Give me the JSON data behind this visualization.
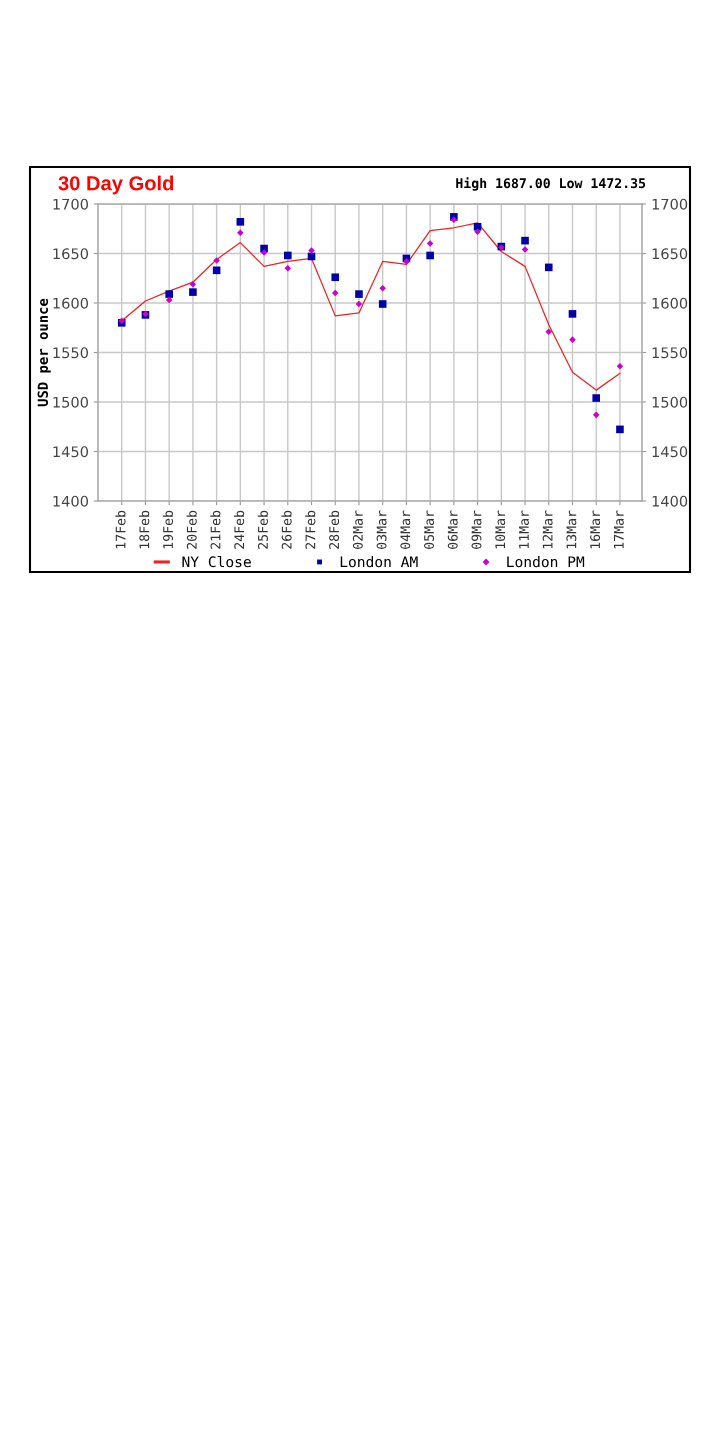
{
  "chart_data": {
    "type": "line",
    "title": "30 Day Gold",
    "subtitle": "High 1687.00 Low 1472.35",
    "ylabel": "USD per ounce",
    "categories": [
      "17Feb",
      "18Feb",
      "19Feb",
      "20Feb",
      "21Feb",
      "24Feb",
      "25Feb",
      "26Feb",
      "27Feb",
      "28Feb",
      "02Mar",
      "03Mar",
      "04Mar",
      "05Mar",
      "06Mar",
      "09Mar",
      "10Mar",
      "11Mar",
      "12Mar",
      "13Mar",
      "16Mar",
      "17Mar"
    ],
    "series": [
      {
        "name": "NY Close",
        "color": "#ee2222",
        "marker": "none",
        "line_style": "solid",
        "values": [
          1582,
          1602,
          1612,
          1621,
          1644,
          1661,
          1637,
          1642,
          1645,
          1587,
          1590,
          1642,
          1639,
          1673,
          1676,
          1681,
          1652,
          1637,
          1578,
          1530,
          1512,
          1529
        ]
      },
      {
        "name": "London AM",
        "type": "scatter",
        "color": "#0000aa",
        "marker": "square",
        "values": [
          1580,
          1588,
          1609,
          1611,
          1633,
          1682,
          1655,
          1648,
          1647,
          1626,
          1609,
          1599,
          1645,
          1648,
          1687,
          1677,
          1657,
          1663,
          1636,
          1589,
          1504,
          1472.35
        ]
      },
      {
        "name": "London PM",
        "type": "scatter",
        "color": "#cc00cc",
        "marker": "diamond",
        "values": [
          1582,
          1589,
          1603,
          1619,
          1643,
          1671,
          1651,
          1635,
          1653,
          1610,
          1599,
          1615,
          1642,
          1660,
          1684,
          1672,
          1656,
          1654,
          1571,
          1563,
          1487,
          1536
        ]
      }
    ],
    "ylim": [
      1400,
      1700
    ],
    "yticks": [
      1400,
      1450,
      1500,
      1550,
      1600,
      1650,
      1700
    ],
    "y2lim": [
      1400,
      1700
    ],
    "y2ticks": [
      1400,
      1450,
      1500,
      1550,
      1600,
      1650,
      1700
    ],
    "grid": true,
    "legend": "bottom"
  }
}
